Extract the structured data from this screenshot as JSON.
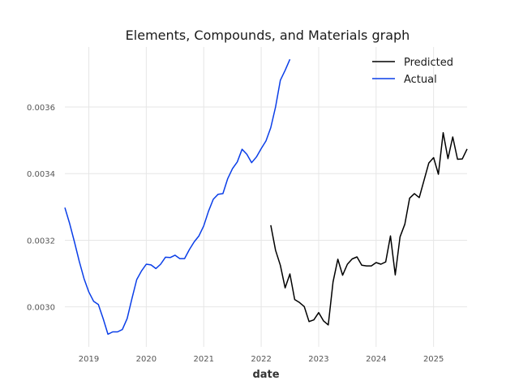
{
  "chart_data": {
    "type": "line",
    "title": "Elements, Compounds, and Materials graph",
    "xlabel": "date",
    "ylabel": "",
    "x_ticks": [
      "2019",
      "2020",
      "2021",
      "2022",
      "2023",
      "2024",
      "2025"
    ],
    "y_ticks": [
      "0.0030",
      "0.0032",
      "0.0034",
      "0.0036"
    ],
    "xlim": [
      "2018-08",
      "2025-08"
    ],
    "ylim": [
      0.00288,
      0.00378
    ],
    "grid": true,
    "legend_position": "top-right",
    "series": [
      {
        "name": "Predicted",
        "color": "#000000",
        "points": [
          [
            "2022-03",
            0.003245
          ],
          [
            "2022-04",
            0.00317
          ],
          [
            "2022-05",
            0.003125
          ],
          [
            "2022-06",
            0.003057
          ],
          [
            "2022-07",
            0.003099
          ],
          [
            "2022-08",
            0.003022
          ],
          [
            "2022-09",
            0.003013
          ],
          [
            "2022-10",
            0.003001
          ],
          [
            "2022-11",
            0.002956
          ],
          [
            "2022-12",
            0.002961
          ],
          [
            "2023-01",
            0.002983
          ],
          [
            "2023-02",
            0.002958
          ],
          [
            "2023-03",
            0.002946
          ],
          [
            "2023-04",
            0.003075
          ],
          [
            "2023-05",
            0.003143
          ],
          [
            "2023-06",
            0.003095
          ],
          [
            "2023-07",
            0.003128
          ],
          [
            "2023-08",
            0.003144
          ],
          [
            "2023-09",
            0.00315
          ],
          [
            "2023-10",
            0.003125
          ],
          [
            "2023-11",
            0.003123
          ],
          [
            "2023-12",
            0.003123
          ],
          [
            "2024-01",
            0.003133
          ],
          [
            "2024-02",
            0.003128
          ],
          [
            "2024-03",
            0.003135
          ],
          [
            "2024-04",
            0.003213
          ],
          [
            "2024-05",
            0.003096
          ],
          [
            "2024-06",
            0.00321
          ],
          [
            "2024-07",
            0.003248
          ],
          [
            "2024-08",
            0.003326
          ],
          [
            "2024-09",
            0.00334
          ],
          [
            "2024-10",
            0.003328
          ],
          [
            "2024-11",
            0.00338
          ],
          [
            "2024-12",
            0.003432
          ],
          [
            "2025-01",
            0.003448
          ],
          [
            "2025-02",
            0.003398
          ],
          [
            "2025-03",
            0.003523
          ],
          [
            "2025-04",
            0.003445
          ],
          [
            "2025-05",
            0.00351
          ],
          [
            "2025-06",
            0.003443
          ],
          [
            "2025-07",
            0.003444
          ],
          [
            "2025-08",
            0.003474
          ]
        ]
      },
      {
        "name": "Actual",
        "color": "#0a3ee8",
        "points": [
          [
            "2018-08",
            0.003298
          ],
          [
            "2018-09",
            0.00325
          ],
          [
            "2018-10",
            0.003195
          ],
          [
            "2018-11",
            0.003137
          ],
          [
            "2018-12",
            0.003085
          ],
          [
            "2019-01",
            0.003045
          ],
          [
            "2019-02",
            0.003017
          ],
          [
            "2019-03",
            0.003007
          ],
          [
            "2019-04",
            0.002965
          ],
          [
            "2019-05",
            0.002918
          ],
          [
            "2019-06",
            0.002925
          ],
          [
            "2019-07",
            0.002925
          ],
          [
            "2019-08",
            0.002932
          ],
          [
            "2019-09",
            0.002965
          ],
          [
            "2019-10",
            0.003025
          ],
          [
            "2019-11",
            0.003082
          ],
          [
            "2019-12",
            0.003108
          ],
          [
            "2020-01",
            0.003128
          ],
          [
            "2020-02",
            0.003126
          ],
          [
            "2020-03",
            0.003115
          ],
          [
            "2020-04",
            0.003128
          ],
          [
            "2020-05",
            0.003149
          ],
          [
            "2020-06",
            0.003148
          ],
          [
            "2020-07",
            0.003155
          ],
          [
            "2020-08",
            0.003145
          ],
          [
            "2020-09",
            0.003145
          ],
          [
            "2020-10",
            0.003172
          ],
          [
            "2020-11",
            0.003195
          ],
          [
            "2020-12",
            0.003213
          ],
          [
            "2021-01",
            0.003243
          ],
          [
            "2021-02",
            0.003287
          ],
          [
            "2021-03",
            0.003323
          ],
          [
            "2021-04",
            0.003338
          ],
          [
            "2021-05",
            0.00334
          ],
          [
            "2021-06",
            0.003385
          ],
          [
            "2021-07",
            0.003415
          ],
          [
            "2021-08",
            0.003435
          ],
          [
            "2021-09",
            0.003473
          ],
          [
            "2021-10",
            0.003458
          ],
          [
            "2021-11",
            0.003433
          ],
          [
            "2021-12",
            0.00345
          ],
          [
            "2022-01",
            0.003475
          ],
          [
            "2022-02",
            0.003498
          ],
          [
            "2022-03",
            0.003538
          ],
          [
            "2022-04",
            0.0036
          ],
          [
            "2022-05",
            0.00368
          ],
          [
            "2022-06",
            0.00371
          ],
          [
            "2022-07",
            0.003743
          ]
        ]
      }
    ]
  }
}
